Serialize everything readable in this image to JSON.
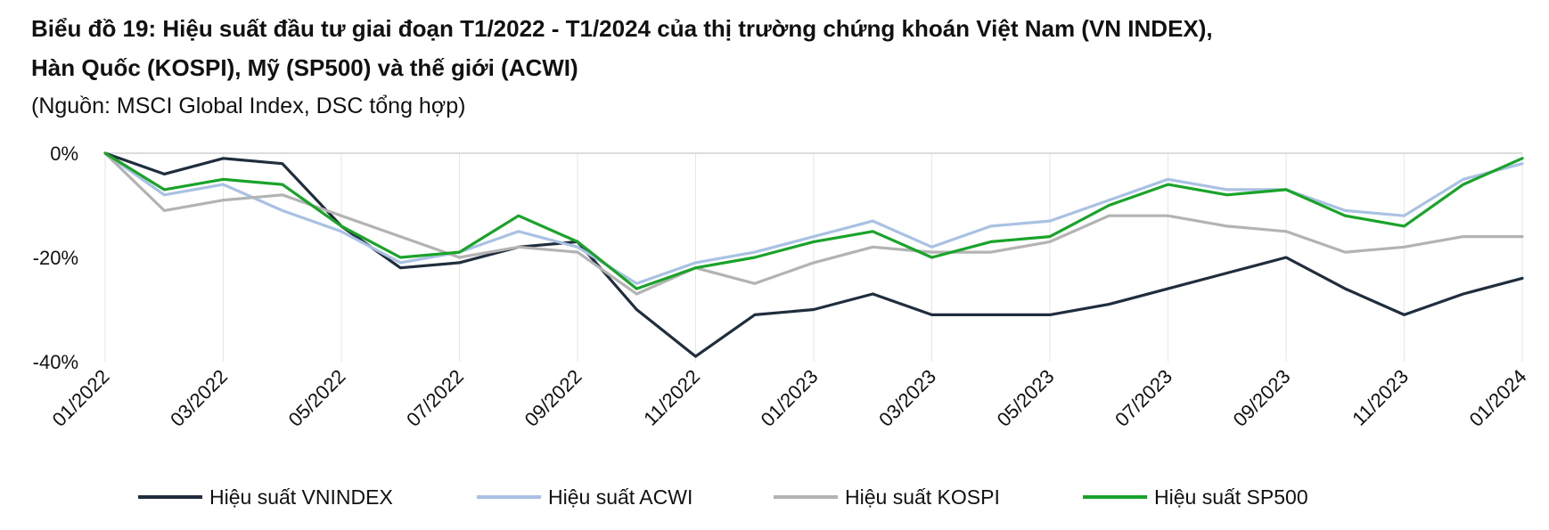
{
  "title_line1": "Biểu đồ 19: Hiệu suất đầu tư giai đoạn T1/2022 - T1/2024 của thị trường chứng khoán Việt Nam (VN INDEX),",
  "title_line2": "Hàn Quốc (KOSPI), Mỹ (SP500) và thế giới (ACWI)",
  "source": "(Nguồn: MSCI Global Index, DSC tổng hợp)",
  "chart_data": {
    "type": "line",
    "title": "Biểu đồ 19: Hiệu suất đầu tư giai đoạn T1/2022 - T1/2024 của thị trường chứng khoán Việt Nam (VN INDEX), Hàn Quốc (KOSPI), Mỹ (SP500) và thế giới (ACWI)",
    "xlabel": "",
    "ylabel": "",
    "x_tick_labels": [
      "01/2022",
      "03/2022",
      "05/2022",
      "07/2022",
      "09/2022",
      "11/2022",
      "01/2023",
      "03/2023",
      "05/2023",
      "07/2023",
      "09/2023",
      "11/2023",
      "01/2024"
    ],
    "y_tick_labels": [
      "0%",
      "-20%",
      "-40%"
    ],
    "ylim": [
      -40,
      0
    ],
    "grid": "vertical gridlines at each x tick",
    "legend_position": "bottom",
    "x": [
      "01/2022",
      "02/2022",
      "03/2022",
      "04/2022",
      "05/2022",
      "06/2022",
      "07/2022",
      "08/2022",
      "09/2022",
      "10/2022",
      "11/2022",
      "12/2022",
      "01/2023",
      "02/2023",
      "03/2023",
      "04/2023",
      "05/2023",
      "06/2023",
      "07/2023",
      "08/2023",
      "09/2023",
      "10/2023",
      "11/2023",
      "12/2023",
      "01/2024"
    ],
    "series": [
      {
        "name": "Hiệu suất VNINDEX",
        "color": "#1f2d3d",
        "values": [
          0,
          -4,
          -1,
          -2,
          -14,
          -22,
          -21,
          -18,
          -17,
          -30,
          -39,
          -31,
          -30,
          -27,
          -31,
          -31,
          -31,
          -29,
          -26,
          -23,
          -20,
          -26,
          -31,
          -27,
          -24
        ]
      },
      {
        "name": "Hiệu suất ACWI",
        "color": "#a9c1e3",
        "values": [
          0,
          -8,
          -6,
          -11,
          -15,
          -21,
          -19,
          -15,
          -18,
          -25,
          -21,
          -19,
          -16,
          -13,
          -18,
          -14,
          -13,
          -9,
          -5,
          -7,
          -7,
          -11,
          -12,
          -5,
          -2
        ]
      },
      {
        "name": "Hiệu suất KOSPI",
        "color": "#b3b3b3",
        "values": [
          0,
          -11,
          -9,
          -8,
          -12,
          -16,
          -20,
          -18,
          -19,
          -27,
          -22,
          -25,
          -21,
          -18,
          -19,
          -19,
          -17,
          -12,
          -12,
          -14,
          -15,
          -19,
          -18,
          -16,
          -16
        ]
      },
      {
        "name": "Hiệu suất SP500",
        "color": "#1aa329",
        "values": [
          0,
          -7,
          -5,
          -6,
          -14,
          -20,
          -19,
          -12,
          -17,
          -26,
          -22,
          -20,
          -17,
          -15,
          -20,
          -17,
          -16,
          -10,
          -6,
          -8,
          -7,
          -12,
          -14,
          -6,
          -1
        ]
      }
    ]
  }
}
